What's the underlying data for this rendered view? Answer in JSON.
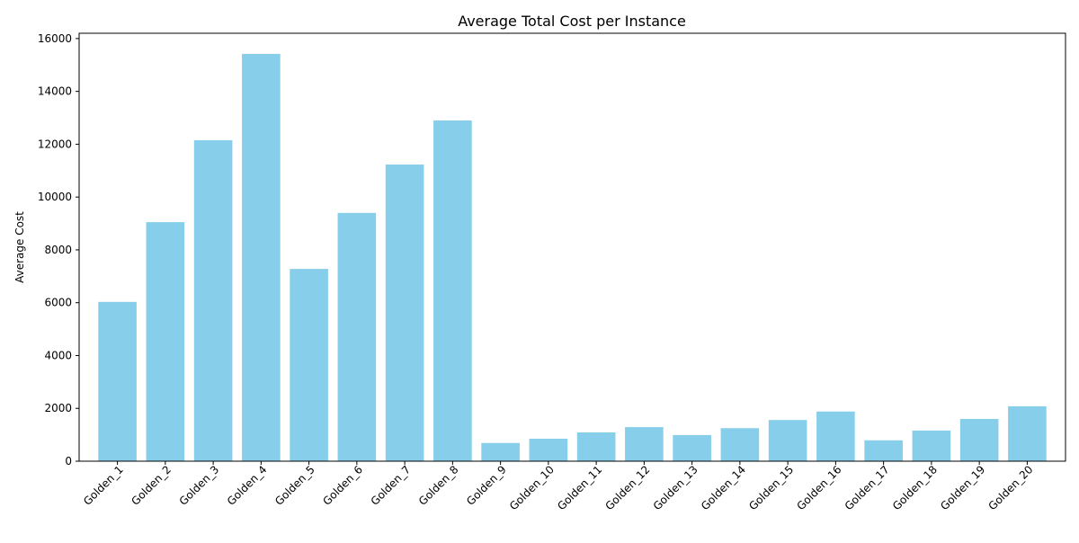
{
  "chart_data": {
    "type": "bar",
    "title": "Average Total Cost per Instance",
    "xlabel": "",
    "ylabel": "Average Cost",
    "categories": [
      "Golden_1",
      "Golden_2",
      "Golden_3",
      "Golden_4",
      "Golden_5",
      "Golden_6",
      "Golden_7",
      "Golden_8",
      "Golden_9",
      "Golden_10",
      "Golden_11",
      "Golden_12",
      "Golden_13",
      "Golden_14",
      "Golden_15",
      "Golden_16",
      "Golden_17",
      "Golden_18",
      "Golden_19",
      "Golden_20"
    ],
    "values": [
      6030,
      9050,
      12150,
      15420,
      7280,
      9400,
      11230,
      12900,
      690,
      850,
      1090,
      1290,
      990,
      1250,
      1560,
      1880,
      790,
      1160,
      1600,
      2080
    ],
    "ylim": [
      0,
      16200
    ],
    "yticks": [
      0,
      2000,
      4000,
      6000,
      8000,
      10000,
      12000,
      14000,
      16000
    ],
    "grid": false,
    "bar_color": "#87ceeb",
    "axis_color": "#000000"
  }
}
